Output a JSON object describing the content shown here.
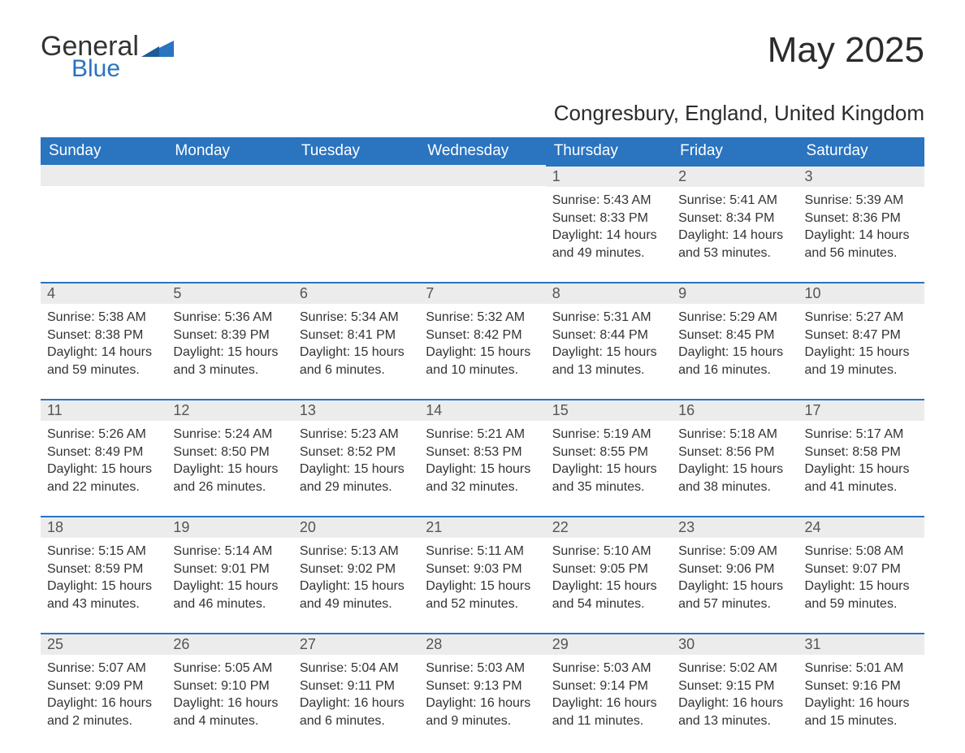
{
  "brand": {
    "line1": "General",
    "line2": "Blue",
    "logo_color": "#2a74c0"
  },
  "title": "May 2025",
  "location": "Congresbury, England, United Kingdom",
  "colors": {
    "header_bg": "#2a74c0",
    "header_text": "#ffffff",
    "daynum_bg": "#ececec",
    "daynum_border": "#2a74c0",
    "body_text": "#333333"
  },
  "day_headers": [
    "Sunday",
    "Monday",
    "Tuesday",
    "Wednesday",
    "Thursday",
    "Friday",
    "Saturday"
  ],
  "weeks": [
    [
      null,
      null,
      null,
      null,
      {
        "n": "1",
        "sunrise": "Sunrise: 5:43 AM",
        "sunset": "Sunset: 8:33 PM",
        "dl1": "Daylight: 14 hours",
        "dl2": "and 49 minutes."
      },
      {
        "n": "2",
        "sunrise": "Sunrise: 5:41 AM",
        "sunset": "Sunset: 8:34 PM",
        "dl1": "Daylight: 14 hours",
        "dl2": "and 53 minutes."
      },
      {
        "n": "3",
        "sunrise": "Sunrise: 5:39 AM",
        "sunset": "Sunset: 8:36 PM",
        "dl1": "Daylight: 14 hours",
        "dl2": "and 56 minutes."
      }
    ],
    [
      {
        "n": "4",
        "sunrise": "Sunrise: 5:38 AM",
        "sunset": "Sunset: 8:38 PM",
        "dl1": "Daylight: 14 hours",
        "dl2": "and 59 minutes."
      },
      {
        "n": "5",
        "sunrise": "Sunrise: 5:36 AM",
        "sunset": "Sunset: 8:39 PM",
        "dl1": "Daylight: 15 hours",
        "dl2": "and 3 minutes."
      },
      {
        "n": "6",
        "sunrise": "Sunrise: 5:34 AM",
        "sunset": "Sunset: 8:41 PM",
        "dl1": "Daylight: 15 hours",
        "dl2": "and 6 minutes."
      },
      {
        "n": "7",
        "sunrise": "Sunrise: 5:32 AM",
        "sunset": "Sunset: 8:42 PM",
        "dl1": "Daylight: 15 hours",
        "dl2": "and 10 minutes."
      },
      {
        "n": "8",
        "sunrise": "Sunrise: 5:31 AM",
        "sunset": "Sunset: 8:44 PM",
        "dl1": "Daylight: 15 hours",
        "dl2": "and 13 minutes."
      },
      {
        "n": "9",
        "sunrise": "Sunrise: 5:29 AM",
        "sunset": "Sunset: 8:45 PM",
        "dl1": "Daylight: 15 hours",
        "dl2": "and 16 minutes."
      },
      {
        "n": "10",
        "sunrise": "Sunrise: 5:27 AM",
        "sunset": "Sunset: 8:47 PM",
        "dl1": "Daylight: 15 hours",
        "dl2": "and 19 minutes."
      }
    ],
    [
      {
        "n": "11",
        "sunrise": "Sunrise: 5:26 AM",
        "sunset": "Sunset: 8:49 PM",
        "dl1": "Daylight: 15 hours",
        "dl2": "and 22 minutes."
      },
      {
        "n": "12",
        "sunrise": "Sunrise: 5:24 AM",
        "sunset": "Sunset: 8:50 PM",
        "dl1": "Daylight: 15 hours",
        "dl2": "and 26 minutes."
      },
      {
        "n": "13",
        "sunrise": "Sunrise: 5:23 AM",
        "sunset": "Sunset: 8:52 PM",
        "dl1": "Daylight: 15 hours",
        "dl2": "and 29 minutes."
      },
      {
        "n": "14",
        "sunrise": "Sunrise: 5:21 AM",
        "sunset": "Sunset: 8:53 PM",
        "dl1": "Daylight: 15 hours",
        "dl2": "and 32 minutes."
      },
      {
        "n": "15",
        "sunrise": "Sunrise: 5:19 AM",
        "sunset": "Sunset: 8:55 PM",
        "dl1": "Daylight: 15 hours",
        "dl2": "and 35 minutes."
      },
      {
        "n": "16",
        "sunrise": "Sunrise: 5:18 AM",
        "sunset": "Sunset: 8:56 PM",
        "dl1": "Daylight: 15 hours",
        "dl2": "and 38 minutes."
      },
      {
        "n": "17",
        "sunrise": "Sunrise: 5:17 AM",
        "sunset": "Sunset: 8:58 PM",
        "dl1": "Daylight: 15 hours",
        "dl2": "and 41 minutes."
      }
    ],
    [
      {
        "n": "18",
        "sunrise": "Sunrise: 5:15 AM",
        "sunset": "Sunset: 8:59 PM",
        "dl1": "Daylight: 15 hours",
        "dl2": "and 43 minutes."
      },
      {
        "n": "19",
        "sunrise": "Sunrise: 5:14 AM",
        "sunset": "Sunset: 9:01 PM",
        "dl1": "Daylight: 15 hours",
        "dl2": "and 46 minutes."
      },
      {
        "n": "20",
        "sunrise": "Sunrise: 5:13 AM",
        "sunset": "Sunset: 9:02 PM",
        "dl1": "Daylight: 15 hours",
        "dl2": "and 49 minutes."
      },
      {
        "n": "21",
        "sunrise": "Sunrise: 5:11 AM",
        "sunset": "Sunset: 9:03 PM",
        "dl1": "Daylight: 15 hours",
        "dl2": "and 52 minutes."
      },
      {
        "n": "22",
        "sunrise": "Sunrise: 5:10 AM",
        "sunset": "Sunset: 9:05 PM",
        "dl1": "Daylight: 15 hours",
        "dl2": "and 54 minutes."
      },
      {
        "n": "23",
        "sunrise": "Sunrise: 5:09 AM",
        "sunset": "Sunset: 9:06 PM",
        "dl1": "Daylight: 15 hours",
        "dl2": "and 57 minutes."
      },
      {
        "n": "24",
        "sunrise": "Sunrise: 5:08 AM",
        "sunset": "Sunset: 9:07 PM",
        "dl1": "Daylight: 15 hours",
        "dl2": "and 59 minutes."
      }
    ],
    [
      {
        "n": "25",
        "sunrise": "Sunrise: 5:07 AM",
        "sunset": "Sunset: 9:09 PM",
        "dl1": "Daylight: 16 hours",
        "dl2": "and 2 minutes."
      },
      {
        "n": "26",
        "sunrise": "Sunrise: 5:05 AM",
        "sunset": "Sunset: 9:10 PM",
        "dl1": "Daylight: 16 hours",
        "dl2": "and 4 minutes."
      },
      {
        "n": "27",
        "sunrise": "Sunrise: 5:04 AM",
        "sunset": "Sunset: 9:11 PM",
        "dl1": "Daylight: 16 hours",
        "dl2": "and 6 minutes."
      },
      {
        "n": "28",
        "sunrise": "Sunrise: 5:03 AM",
        "sunset": "Sunset: 9:13 PM",
        "dl1": "Daylight: 16 hours",
        "dl2": "and 9 minutes."
      },
      {
        "n": "29",
        "sunrise": "Sunrise: 5:03 AM",
        "sunset": "Sunset: 9:14 PM",
        "dl1": "Daylight: 16 hours",
        "dl2": "and 11 minutes."
      },
      {
        "n": "30",
        "sunrise": "Sunrise: 5:02 AM",
        "sunset": "Sunset: 9:15 PM",
        "dl1": "Daylight: 16 hours",
        "dl2": "and 13 minutes."
      },
      {
        "n": "31",
        "sunrise": "Sunrise: 5:01 AM",
        "sunset": "Sunset: 9:16 PM",
        "dl1": "Daylight: 16 hours",
        "dl2": "and 15 minutes."
      }
    ]
  ]
}
